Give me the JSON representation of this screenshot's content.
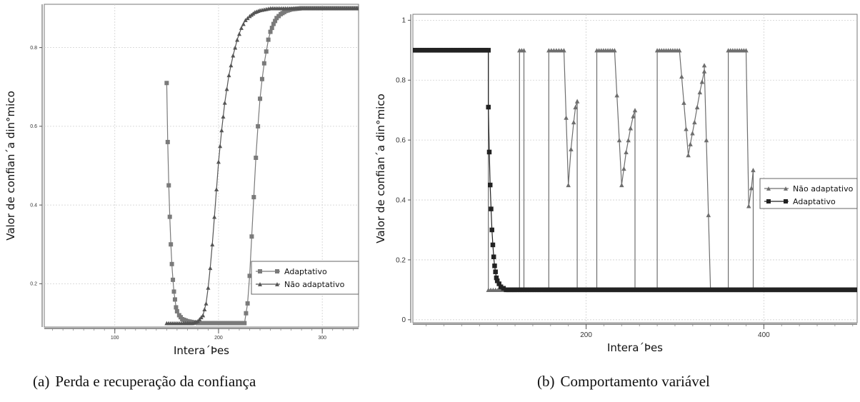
{
  "figure": {
    "captions": [
      {
        "letter": "(a)",
        "text": "Perda e recuperação da confiança"
      },
      {
        "letter": "(b)",
        "text": "Comportamento variável"
      }
    ]
  },
  "chart_data": [
    {
      "type": "line",
      "xlabel": "Intera´Þes",
      "ylabel": "Valor de confian´a din°mico",
      "xlim": [
        32,
        335
      ],
      "ylim": [
        0.09,
        0.91
      ],
      "xticks": [
        100,
        200,
        300
      ],
      "xtick_labels": [
        "100",
        "200",
        "300"
      ],
      "yticks": [
        0.2,
        0.4,
        0.6,
        0.8
      ],
      "ytick_labels": [
        "0.2",
        "0.4",
        "0.6",
        "0.8"
      ],
      "grid": true,
      "legend": "center-right",
      "series": [
        {
          "name": "Adaptativo",
          "marker": "square",
          "color": "#7a7a7a",
          "x": [
            150,
            151,
            152,
            153,
            154,
            155,
            156,
            157,
            158,
            159,
            160,
            162,
            165,
            170,
            180,
            200,
            215,
            225,
            228,
            230,
            232,
            234,
            236,
            238,
            240,
            242,
            244,
            246,
            248,
            250,
            253,
            256,
            260,
            265,
            270,
            280,
            300,
            320,
            335
          ],
          "y": [
            0.71,
            0.56,
            0.45,
            0.37,
            0.3,
            0.25,
            0.21,
            0.18,
            0.16,
            0.14,
            0.13,
            0.12,
            0.11,
            0.105,
            0.1,
            0.1,
            0.1,
            0.1,
            0.15,
            0.22,
            0.32,
            0.42,
            0.52,
            0.6,
            0.67,
            0.72,
            0.76,
            0.79,
            0.82,
            0.84,
            0.86,
            0.875,
            0.885,
            0.893,
            0.897,
            0.9,
            0.9,
            0.9,
            0.9
          ]
        },
        {
          "name": "Não adaptativo",
          "marker": "triangle",
          "color": "#555555",
          "x": [
            150,
            160,
            170,
            175,
            180,
            185,
            188,
            190,
            192,
            194,
            196,
            198,
            200,
            203,
            206,
            210,
            214,
            218,
            222,
            226,
            230,
            235,
            240,
            250,
            270,
            300,
            335
          ],
          "y": [
            0.1,
            0.1,
            0.1,
            0.1,
            0.105,
            0.12,
            0.15,
            0.19,
            0.24,
            0.3,
            0.37,
            0.44,
            0.51,
            0.59,
            0.66,
            0.73,
            0.78,
            0.82,
            0.85,
            0.87,
            0.88,
            0.89,
            0.895,
            0.9,
            0.9,
            0.9,
            0.9
          ]
        }
      ]
    },
    {
      "type": "line",
      "xlabel": "Intera´Þes",
      "ylabel": "Valor de confian´a din°mico",
      "xlim": [
        5,
        505
      ],
      "ylim": [
        -0.01,
        1.02
      ],
      "xticks": [
        200,
        400
      ],
      "xtick_labels": [
        "200",
        "400"
      ],
      "yticks": [
        0,
        0.2,
        0.4,
        0.6,
        0.8,
        1
      ],
      "ytick_labels": [
        "0",
        "0.2",
        "0.4",
        "0.6",
        "0.8",
        "1"
      ],
      "grid": true,
      "legend": "center-right",
      "series": [
        {
          "name": "Não adaptativo",
          "marker": "triangle",
          "color": "#6e6e6e",
          "x": [
            5,
            90,
            90,
            125,
            125,
            130,
            130,
            158,
            158,
            175,
            180,
            183,
            186,
            188,
            190,
            190,
            195,
            200,
            205,
            212,
            212,
            232,
            240,
            245,
            250,
            253,
            255,
            255,
            260,
            265,
            270,
            280,
            280,
            305,
            315,
            322,
            328,
            333,
            333,
            340,
            345,
            350,
            360,
            360,
            380,
            383,
            386,
            388,
            388,
            393,
            398,
            505
          ],
          "y": [
            0.9,
            0.9,
            0.1,
            0.1,
            0.9,
            0.9,
            0.1,
            0.1,
            0.9,
            0.9,
            0.45,
            0.57,
            0.66,
            0.71,
            0.73,
            0.1,
            0.1,
            0.1,
            0.1,
            0.1,
            0.9,
            0.9,
            0.45,
            0.56,
            0.64,
            0.68,
            0.7,
            0.1,
            0.1,
            0.1,
            0.1,
            0.1,
            0.9,
            0.9,
            0.55,
            0.66,
            0.76,
            0.83,
            0.85,
            0.1,
            0.1,
            0.1,
            0.1,
            0.9,
            0.9,
            0.38,
            0.44,
            0.5,
            0.1,
            0.1,
            0.1,
            0.1
          ]
        },
        {
          "name": "Adaptativo",
          "marker": "square",
          "color": "#222222",
          "x": [
            5,
            90,
            90,
            91,
            92,
            93,
            94,
            95,
            96,
            97,
            98,
            99,
            100,
            102,
            104,
            107,
            110,
            120,
            150,
            200,
            250,
            300,
            350,
            400,
            450,
            505
          ],
          "y": [
            0.9,
            0.9,
            0.71,
            0.56,
            0.45,
            0.37,
            0.3,
            0.25,
            0.21,
            0.18,
            0.16,
            0.14,
            0.13,
            0.12,
            0.11,
            0.105,
            0.1,
            0.1,
            0.1,
            0.1,
            0.1,
            0.1,
            0.1,
            0.1,
            0.1,
            0.1
          ]
        }
      ]
    }
  ]
}
